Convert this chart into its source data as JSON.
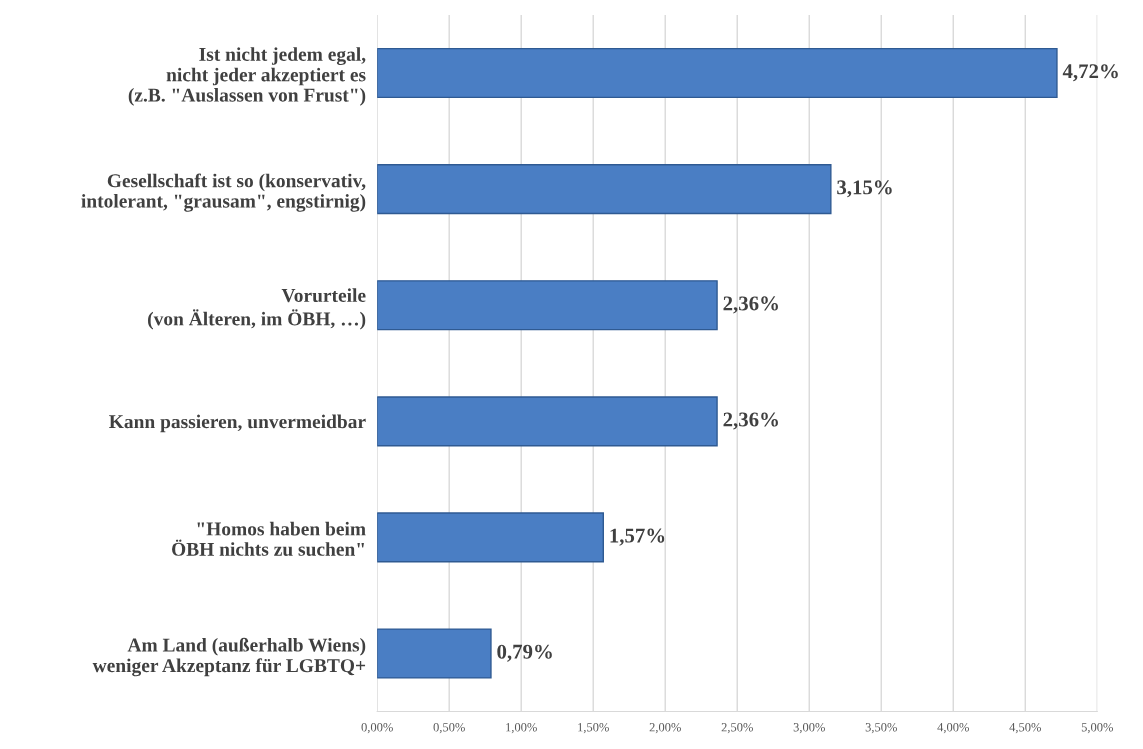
{
  "chart_data": {
    "type": "bar",
    "orientation": "horizontal",
    "categories": [
      "Ist nicht jedem egal,\nnicht jeder akzeptiert es\n(z.B. \"Auslassen von Frust\")",
      "Gesellschaft ist so (konservativ,\nintolerant, \"grausam\", engstirnig)",
      "Vorurteile\n(von Älteren, im ÖBH, …)",
      "Kann passieren, unvermeidbar",
      "\"Homos haben beim\nÖBH nichts zu suchen\"",
      "Am Land (außerhalb Wiens)\nweniger Akzeptanz für LGBTQ+"
    ],
    "values": [
      4.72,
      3.15,
      2.36,
      2.36,
      1.57,
      0.79
    ],
    "value_labels": [
      "4,72%",
      "3,15%",
      "2,36%",
      "2,36%",
      "1,57%",
      "0,79%"
    ],
    "color": "#4a7ec4",
    "xlim": [
      0,
      5
    ],
    "xticks": [
      {
        "value": 0,
        "label": "0,00%"
      },
      {
        "value": 0.5,
        "label": "0,50%"
      },
      {
        "value": 1,
        "label": "1,00%"
      },
      {
        "value": 1.5,
        "label": "1,50%"
      },
      {
        "value": 2,
        "label": "2,00%"
      },
      {
        "value": 2.5,
        "label": "2,50%"
      },
      {
        "value": 3,
        "label": "3,00%"
      },
      {
        "value": 3.5,
        "label": "3,50%"
      },
      {
        "value": 4,
        "label": "4,00%"
      },
      {
        "value": 4.5,
        "label": "4,50%"
      },
      {
        "value": 5,
        "label": "5,00%"
      }
    ],
    "grid": "x",
    "legend": false
  }
}
